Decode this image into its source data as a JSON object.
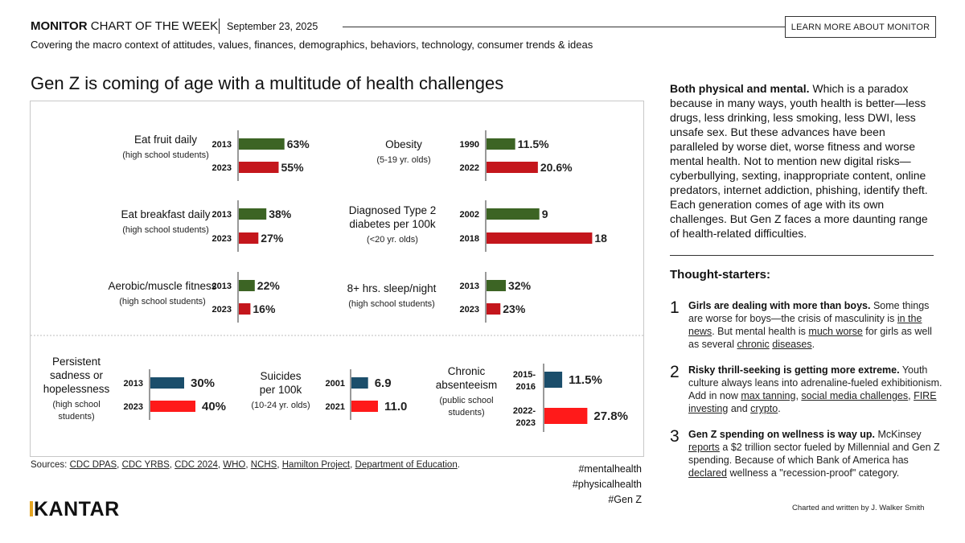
{
  "header": {
    "brand": "MONITOR",
    "brand_rest": "CHART OF THE WEEK",
    "date": "September 23, 2025",
    "learn_more": "LEARN MORE ABOUT MONITOR",
    "subtitle": "Covering the macro context of attitudes, values, finances, demographics, behaviors, technology, consumer trends & ideas"
  },
  "main_title": "Gen Z is coming of age with a multitude of health challenges",
  "colors": {
    "green": "#3c6424",
    "red_dark": "#c4161c",
    "navy": "#1b4e6b",
    "red_bright": "#ff1a1a",
    "accent": "#e6a623"
  },
  "chart_data": [
    {
      "type": "bar",
      "id": "fruit",
      "label": [
        "Eat fruit daily"
      ],
      "sublabel": [
        "(high school students)"
      ],
      "categories": [
        "2013",
        "2023"
      ],
      "values": [
        63,
        55
      ],
      "display": [
        "63%",
        "55%"
      ],
      "max": 100
    },
    {
      "type": "bar",
      "id": "breakfast",
      "label": [
        "Eat breakfast daily"
      ],
      "sublabel": [
        "(high school students)"
      ],
      "categories": [
        "2013",
        "2023"
      ],
      "values": [
        38,
        27
      ],
      "display": [
        "38%",
        "27%"
      ],
      "max": 100
    },
    {
      "type": "bar",
      "id": "fitness",
      "label": [
        "Aerobic/muscle fitness"
      ],
      "sublabel": [
        "(high school students)"
      ],
      "categories": [
        "2013",
        "2023"
      ],
      "values": [
        22,
        16
      ],
      "display": [
        "22%",
        "16%"
      ],
      "max": 100
    },
    {
      "type": "bar",
      "id": "obesity",
      "label": [
        "Obesity"
      ],
      "sublabel": [
        "(5-19 yr. olds)"
      ],
      "categories": [
        "1990",
        "2022"
      ],
      "values": [
        11.5,
        20.6
      ],
      "display": [
        "11.5%",
        "20.6%"
      ],
      "max": 100
    },
    {
      "type": "bar",
      "id": "diabetes",
      "label": [
        "Diagnosed Type 2",
        "diabetes per 100k"
      ],
      "sublabel": [
        "(<20 yr. olds)"
      ],
      "categories": [
        "2002",
        "2018"
      ],
      "values": [
        9,
        18
      ],
      "display": [
        "9",
        "18"
      ],
      "max": 18
    },
    {
      "type": "bar",
      "id": "sleep",
      "label": [
        "8+ hrs. sleep/night"
      ],
      "sublabel": [
        "(high school students)"
      ],
      "categories": [
        "2013",
        "2023"
      ],
      "values": [
        32,
        23
      ],
      "display": [
        "32%",
        "23%"
      ],
      "max": 100
    },
    {
      "type": "bar",
      "id": "sadness",
      "label": [
        "Persistent",
        "sadness or",
        "hopelessness"
      ],
      "sublabel": [
        "(high school",
        "students)"
      ],
      "categories": [
        "2013",
        "2023"
      ],
      "values": [
        30,
        40
      ],
      "display": [
        "30%",
        "40%"
      ],
      "max": 50
    },
    {
      "type": "bar",
      "id": "suicides",
      "label": [
        "Suicides",
        "per 100k"
      ],
      "sublabel": [
        "(10-24 yr. olds)"
      ],
      "categories": [
        "2001",
        "2021"
      ],
      "values": [
        6.9,
        11.0
      ],
      "display": [
        "6.9",
        "11.0"
      ],
      "max": 20
    },
    {
      "type": "bar",
      "id": "absenteeism",
      "label": [
        "Chronic",
        "absenteeism"
      ],
      "sublabel": [
        "(public school",
        "students)"
      ],
      "categories": [
        "2015-\n2016",
        "2022-\n2023"
      ],
      "values": [
        11.5,
        27.8
      ],
      "display": [
        "11.5%",
        "27.8%"
      ],
      "max": 50
    }
  ],
  "sources": {
    "prefix": "Sources:",
    "links": [
      "CDC DPAS",
      "CDC YRBS",
      "CDC 2024",
      "WHO",
      "NCHS",
      "Hamilton Project",
      "Department of Education"
    ]
  },
  "hashtags": [
    "#mentalhealth",
    "#physicalhealth",
    "#Gen Z"
  ],
  "logo": "KANTAR",
  "paragraph": {
    "lead": "Both physical and mental.",
    "body": "Which is a paradox because in many ways, youth health is better—less drugs, less drinking, less smoking, less DWI, less unsafe sex. But these advances have been paralleled by worse diet, worse fitness and worse mental health. Not to mention new digital risks—cyberbullying, sexting, inappropriate content, online predators, internet addiction, phishing, identify theft. Each generation comes of age with its own challenges. But Gen Z faces a more daunting range of health-related difficulties."
  },
  "thought_starters": {
    "title": "Thought-starters:",
    "items": [
      {
        "num": "1",
        "lead": "Girls are dealing with more than boys.",
        "t1": "Some things are worse for boys—the crisis of masculinity is",
        "l1": "in the news",
        "t2": ". But mental health is",
        "l2": "much worse",
        "t3": "for girls as well as several",
        "l3": "chronic",
        "l4": "diseases",
        "t4": "."
      },
      {
        "num": "2",
        "lead": "Risky thrill-seeking is getting more extreme.",
        "t1": "Youth culture always leans into adrenaline-fueled exhibitionism. Add in now",
        "l1": "max tanning",
        "l2": "social media challenges",
        "l3": "FIRE investing",
        "t2": "and",
        "l4": "crypto",
        "t3": "."
      },
      {
        "num": "3",
        "lead": "Gen Z spending on wellness is way up.",
        "t1": "McKinsey",
        "l1": "reports",
        "t2": "a $2 trillion sector fueled by Millennial and Gen Z spending. Because of which Bank of America has",
        "l2": "declared",
        "t3": "wellness a \"recession-proof\" category."
      }
    ]
  },
  "credit": "Charted and written by J. Walker Smith"
}
